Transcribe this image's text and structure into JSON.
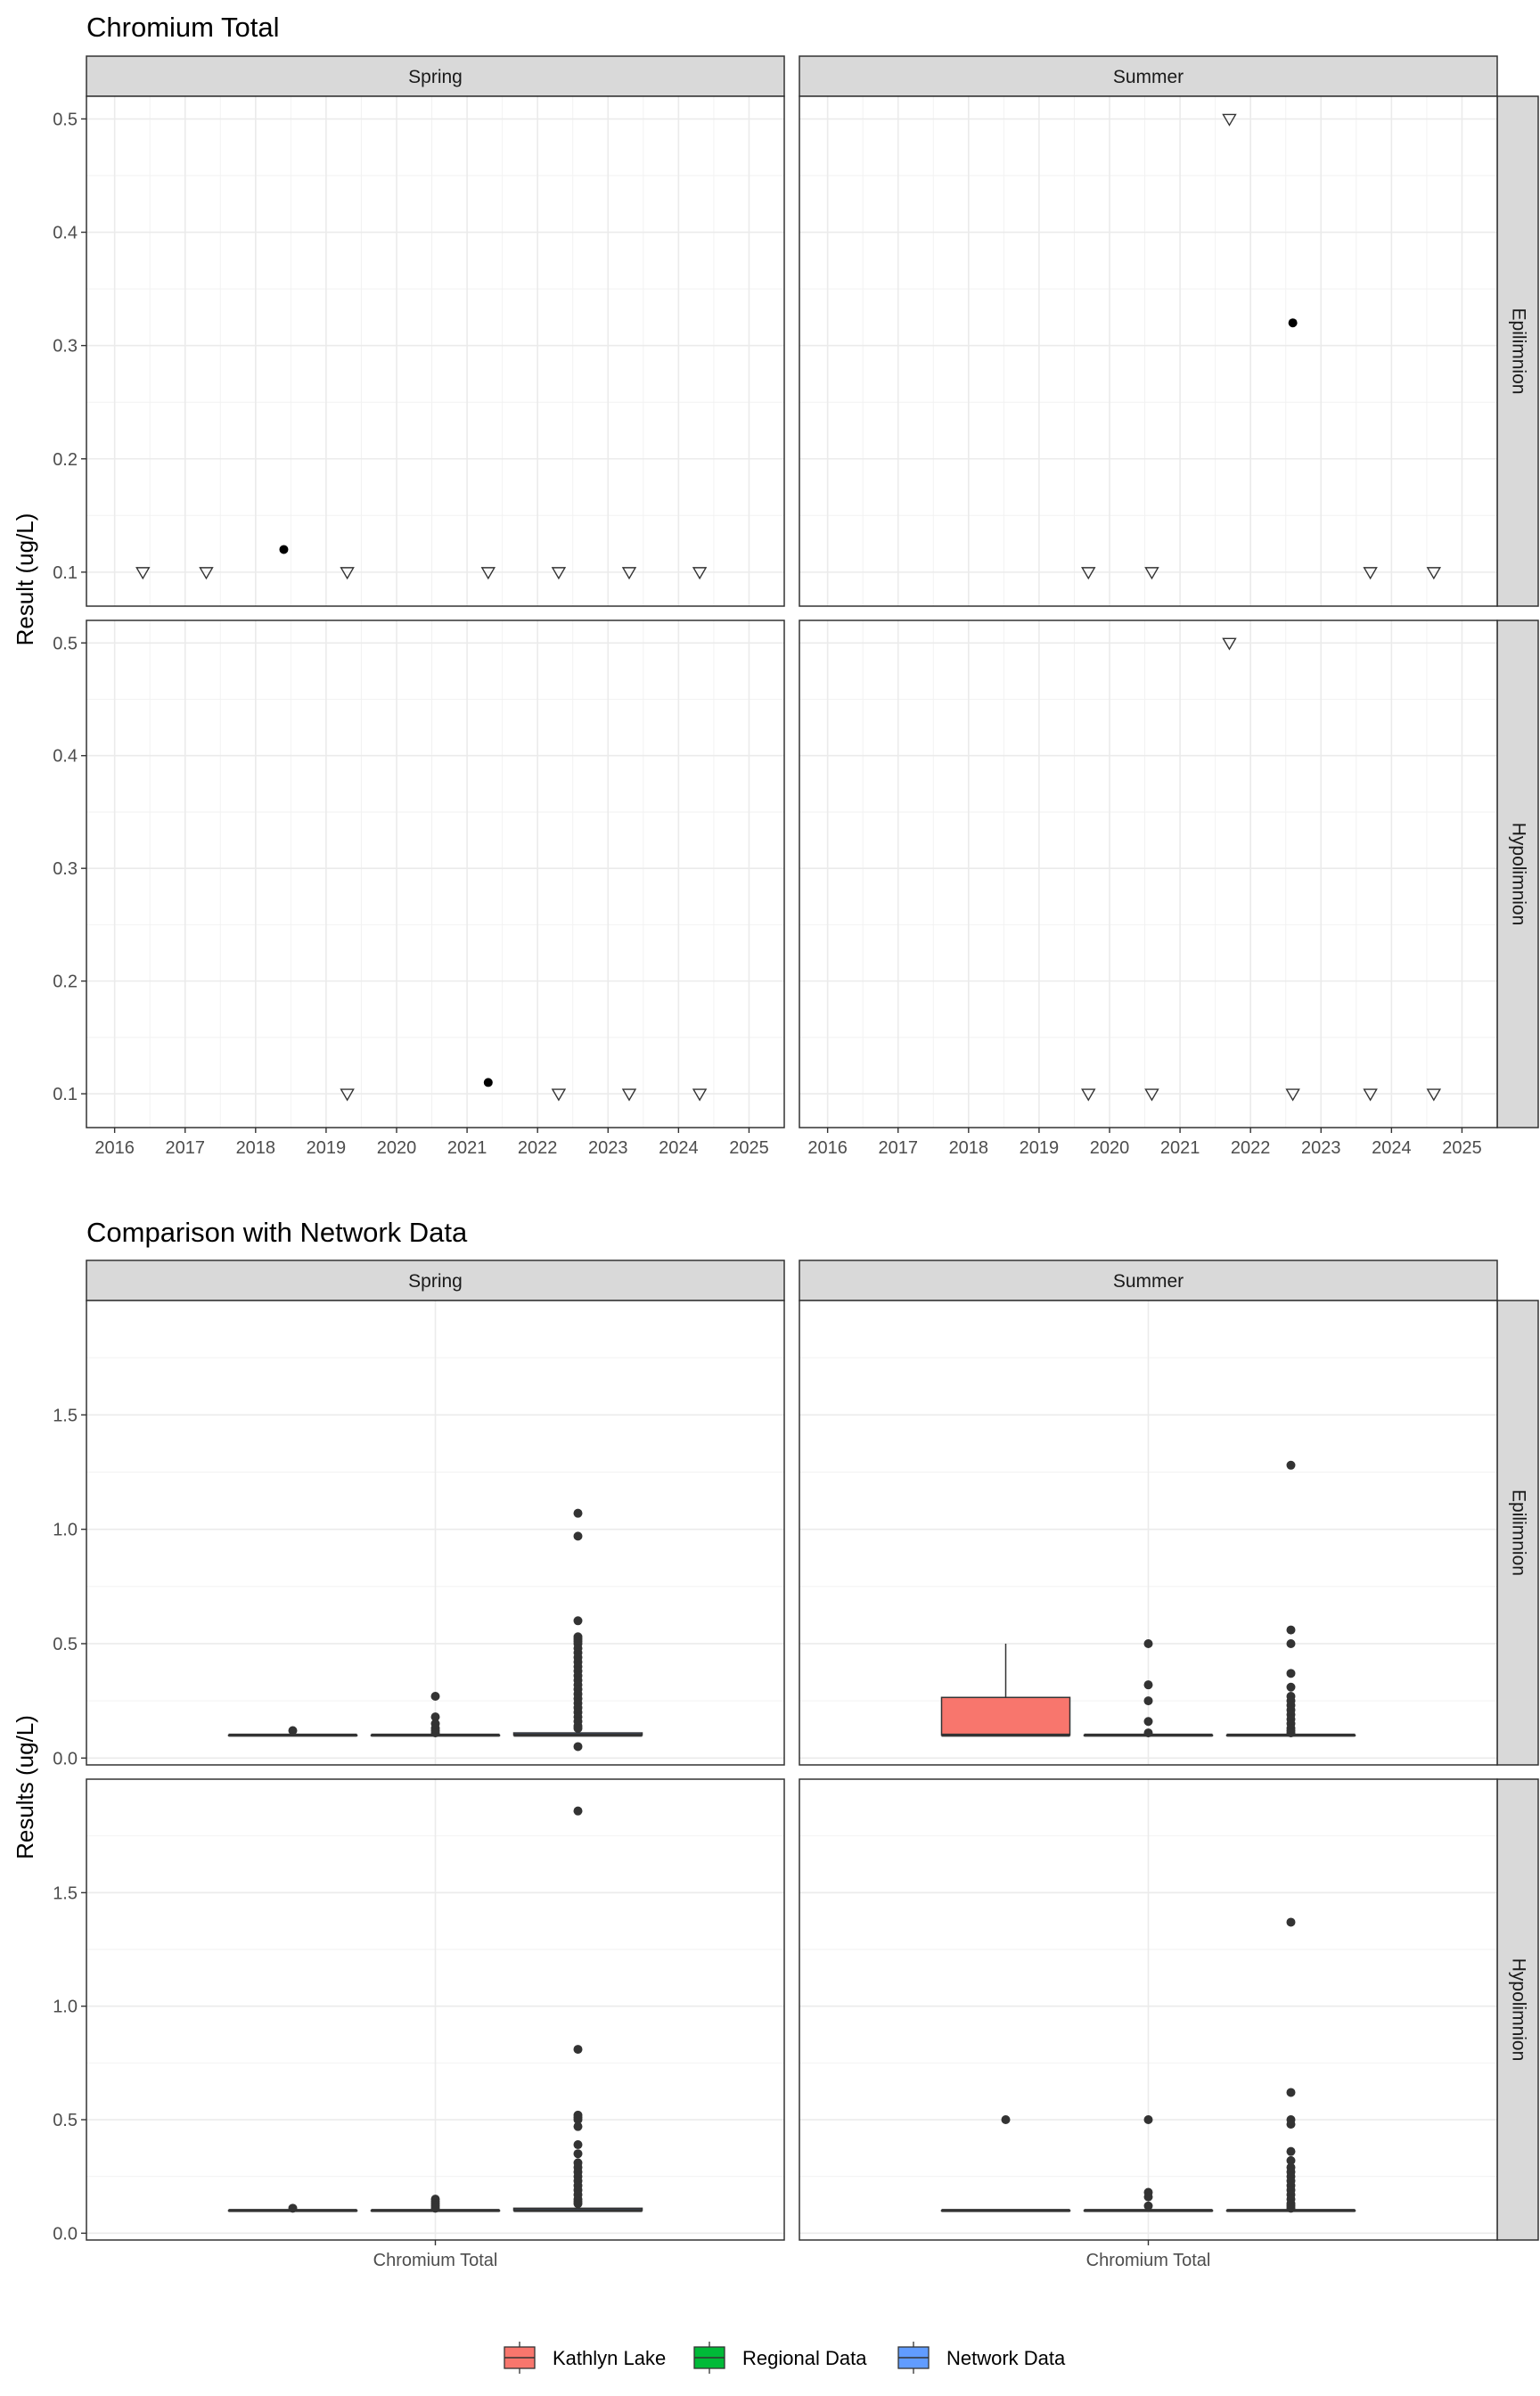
{
  "chart_data": [
    {
      "type": "scatter",
      "title": "Chromium Total",
      "xlabel": "",
      "ylabel": "Result (ug/L)",
      "facet_columns": [
        "Spring",
        "Summer"
      ],
      "facet_rows": [
        "Epilimnion",
        "Hypolimnion"
      ],
      "xlim": [
        2015.6,
        2025.5
      ],
      "ylim": [
        0.07,
        0.52
      ],
      "x_ticks": [
        "2016",
        "2017",
        "2018",
        "2019",
        "2020",
        "2021",
        "2022",
        "2023",
        "2024",
        "2025"
      ],
      "y_ticks": [
        "0.1",
        "0.2",
        "0.3",
        "0.4",
        "0.5"
      ],
      "point_legend": {
        "detected": "filled circle",
        "below_detection_limit": "open triangle"
      },
      "grid": true,
      "panels": [
        {
          "season": "Spring",
          "layer": "Epilimnion",
          "points": [
            {
              "x": 2016.4,
              "y": 0.1,
              "detected": false
            },
            {
              "x": 2017.3,
              "y": 0.1,
              "detected": false
            },
            {
              "x": 2018.4,
              "y": 0.12,
              "detected": true
            },
            {
              "x": 2019.3,
              "y": 0.1,
              "detected": false
            },
            {
              "x": 2021.3,
              "y": 0.1,
              "detected": false
            },
            {
              "x": 2022.3,
              "y": 0.1,
              "detected": false
            },
            {
              "x": 2023.3,
              "y": 0.1,
              "detected": false
            },
            {
              "x": 2024.3,
              "y": 0.1,
              "detected": false
            }
          ]
        },
        {
          "season": "Summer",
          "layer": "Epilimnion",
          "points": [
            {
              "x": 2019.7,
              "y": 0.1,
              "detected": false
            },
            {
              "x": 2020.6,
              "y": 0.1,
              "detected": false
            },
            {
              "x": 2021.7,
              "y": 0.5,
              "detected": false
            },
            {
              "x": 2022.6,
              "y": 0.32,
              "detected": true
            },
            {
              "x": 2023.7,
              "y": 0.1,
              "detected": false
            },
            {
              "x": 2024.6,
              "y": 0.1,
              "detected": false
            }
          ]
        },
        {
          "season": "Spring",
          "layer": "Hypolimnion",
          "points": [
            {
              "x": 2019.3,
              "y": 0.1,
              "detected": false
            },
            {
              "x": 2021.3,
              "y": 0.11,
              "detected": true
            },
            {
              "x": 2022.3,
              "y": 0.1,
              "detected": false
            },
            {
              "x": 2023.3,
              "y": 0.1,
              "detected": false
            },
            {
              "x": 2024.3,
              "y": 0.1,
              "detected": false
            }
          ]
        },
        {
          "season": "Summer",
          "layer": "Hypolimnion",
          "points": [
            {
              "x": 2019.7,
              "y": 0.1,
              "detected": false
            },
            {
              "x": 2020.6,
              "y": 0.1,
              "detected": false
            },
            {
              "x": 2021.7,
              "y": 0.5,
              "detected": false
            },
            {
              "x": 2022.6,
              "y": 0.1,
              "detected": false
            },
            {
              "x": 2023.7,
              "y": 0.1,
              "detected": false
            },
            {
              "x": 2024.6,
              "y": 0.1,
              "detected": false
            }
          ]
        }
      ]
    },
    {
      "type": "box",
      "title": "Comparison with Network Data",
      "xlabel": "",
      "ylabel": "Results (ug/L)",
      "facet_columns": [
        "Spring",
        "Summer"
      ],
      "facet_rows": [
        "Epilimnion",
        "Hypolimnion"
      ],
      "categories": [
        "Chromium Total"
      ],
      "ylim": [
        -0.03,
        2.0
      ],
      "y_ticks": [
        "0.0",
        "0.5",
        "1.0",
        "1.5"
      ],
      "series": [
        {
          "name": "Kathlyn Lake",
          "color": "#F8766D"
        },
        {
          "name": "Regional Data",
          "color": "#00BA38"
        },
        {
          "name": "Network Data",
          "color": "#619CFF"
        }
      ],
      "legend_position": "bottom",
      "grid": true,
      "panels": [
        {
          "season": "Spring",
          "layer": "Epilimnion",
          "boxes": [
            {
              "series": "Kathlyn Lake",
              "q1": 0.1,
              "median": 0.1,
              "q3": 0.1,
              "whisker_low": 0.1,
              "whisker_high": 0.1,
              "outliers": [
                0.12
              ]
            },
            {
              "series": "Regional Data",
              "q1": 0.1,
              "median": 0.1,
              "q3": 0.1,
              "whisker_low": 0.1,
              "whisker_high": 0.1,
              "outliers": [
                0.27,
                0.18,
                0.15,
                0.13,
                0.12,
                0.11
              ]
            },
            {
              "series": "Network Data",
              "q1": 0.1,
              "median": 0.1,
              "q3": 0.11,
              "whisker_low": 0.1,
              "whisker_high": 0.12,
              "outliers": [
                1.07,
                0.97,
                0.6,
                0.53,
                0.52,
                0.51,
                0.5,
                0.48,
                0.46,
                0.44,
                0.42,
                0.4,
                0.38,
                0.36,
                0.34,
                0.32,
                0.3,
                0.28,
                0.26,
                0.24,
                0.22,
                0.2,
                0.18,
                0.16,
                0.14,
                0.13,
                0.05
              ]
            }
          ]
        },
        {
          "season": "Summer",
          "layer": "Epilimnion",
          "boxes": [
            {
              "series": "Kathlyn Lake",
              "q1": 0.1,
              "median": 0.1,
              "q3": 0.265,
              "whisker_low": 0.1,
              "whisker_high": 0.5,
              "outliers": []
            },
            {
              "series": "Regional Data",
              "q1": 0.1,
              "median": 0.1,
              "q3": 0.1,
              "whisker_low": 0.1,
              "whisker_high": 0.1,
              "outliers": [
                0.5,
                0.32,
                0.25,
                0.16,
                0.11
              ]
            },
            {
              "series": "Network Data",
              "q1": 0.1,
              "median": 0.1,
              "q3": 0.1,
              "whisker_low": 0.1,
              "whisker_high": 0.1,
              "outliers": [
                1.28,
                0.56,
                0.5,
                0.37,
                0.31,
                0.27,
                0.25,
                0.23,
                0.21,
                0.19,
                0.17,
                0.15,
                0.13,
                0.12,
                0.11
              ]
            }
          ]
        },
        {
          "season": "Spring",
          "layer": "Hypolimnion",
          "boxes": [
            {
              "series": "Kathlyn Lake",
              "q1": 0.1,
              "median": 0.1,
              "q3": 0.1,
              "whisker_low": 0.1,
              "whisker_high": 0.1,
              "outliers": [
                0.11
              ]
            },
            {
              "series": "Regional Data",
              "q1": 0.1,
              "median": 0.1,
              "q3": 0.1,
              "whisker_low": 0.1,
              "whisker_high": 0.1,
              "outliers": [
                0.15,
                0.14,
                0.13,
                0.12,
                0.11
              ]
            },
            {
              "series": "Network Data",
              "q1": 0.1,
              "median": 0.1,
              "q3": 0.11,
              "whisker_low": 0.1,
              "whisker_high": 0.12,
              "outliers": [
                1.86,
                0.81,
                0.52,
                0.51,
                0.5,
                0.47,
                0.39,
                0.35,
                0.31,
                0.29,
                0.27,
                0.25,
                0.23,
                0.21,
                0.19,
                0.17,
                0.15,
                0.14,
                0.13
              ]
            }
          ]
        },
        {
          "season": "Summer",
          "layer": "Hypolimnion",
          "boxes": [
            {
              "series": "Kathlyn Lake",
              "q1": 0.1,
              "median": 0.1,
              "q3": 0.1,
              "whisker_low": 0.1,
              "whisker_high": 0.1,
              "outliers": [
                0.5
              ]
            },
            {
              "series": "Regional Data",
              "q1": 0.1,
              "median": 0.1,
              "q3": 0.1,
              "whisker_low": 0.1,
              "whisker_high": 0.1,
              "outliers": [
                0.5,
                0.18,
                0.16,
                0.12
              ]
            },
            {
              "series": "Network Data",
              "q1": 0.1,
              "median": 0.1,
              "q3": 0.1,
              "whisker_low": 0.1,
              "whisker_high": 0.1,
              "outliers": [
                1.37,
                0.62,
                0.5,
                0.48,
                0.36,
                0.32,
                0.29,
                0.27,
                0.25,
                0.23,
                0.21,
                0.19,
                0.17,
                0.15,
                0.13,
                0.12,
                0.11
              ]
            }
          ]
        }
      ]
    }
  ]
}
